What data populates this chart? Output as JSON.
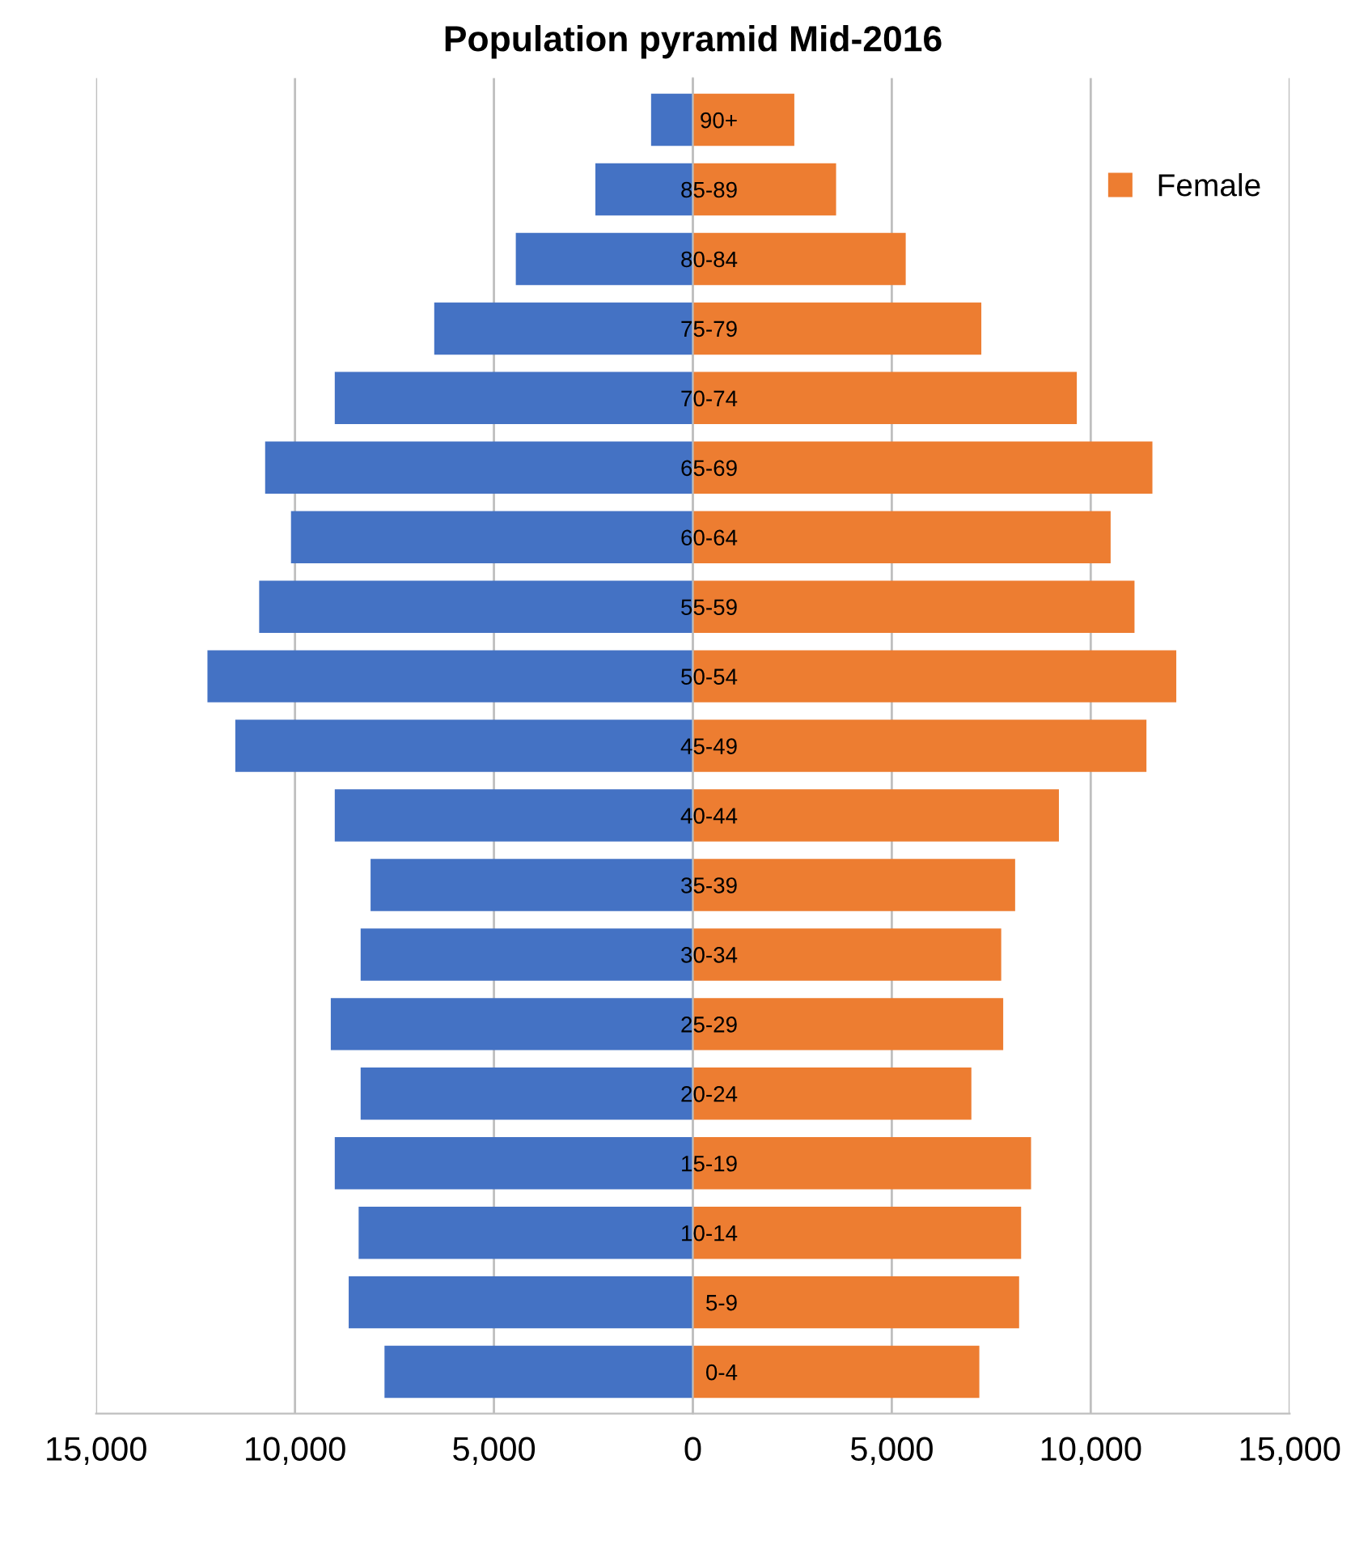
{
  "chart_data": {
    "type": "bar",
    "orientation": "horizontal",
    "stacked": true,
    "title": "Population pyramid Mid-2016",
    "categories": [
      "90+",
      "85-89",
      "80-84",
      "75-79",
      "70-74",
      "65-69",
      "60-64",
      "55-59",
      "50-54",
      "45-49",
      "40-44",
      "35-39",
      "30-34",
      "25-29",
      "20-24",
      "15-19",
      "10-14",
      "5-9",
      "0-4"
    ],
    "series": [
      {
        "color": "#4472c4",
        "values": [
          -1050,
          -2450,
          -4450,
          -6500,
          -9000,
          -10750,
          -10100,
          -10900,
          -12200,
          -11500,
          -9000,
          -8100,
          -8350,
          -9100,
          -8350,
          -9000,
          -8400,
          -8650,
          -7750
        ]
      },
      {
        "name": "Female",
        "color": "#ed7d31",
        "values": [
          2550,
          3600,
          5350,
          7250,
          9650,
          11550,
          10500,
          11100,
          12150,
          11400,
          9200,
          8100,
          7750,
          7800,
          7000,
          8500,
          8250,
          8200,
          7200
        ]
      }
    ],
    "xlim": [
      -15000,
      15000
    ],
    "xticks": [
      {
        "value": -15000,
        "label": "15,000"
      },
      {
        "value": -10000,
        "label": "10,000"
      },
      {
        "value": -5000,
        "label": "5,000"
      },
      0,
      {
        "value": 5000,
        "label": "5,000"
      },
      {
        "value": 10000,
        "label": "10,000"
      },
      {
        "value": 15000,
        "label": "15,000"
      }
    ],
    "grid": "x",
    "legend": "top right"
  }
}
